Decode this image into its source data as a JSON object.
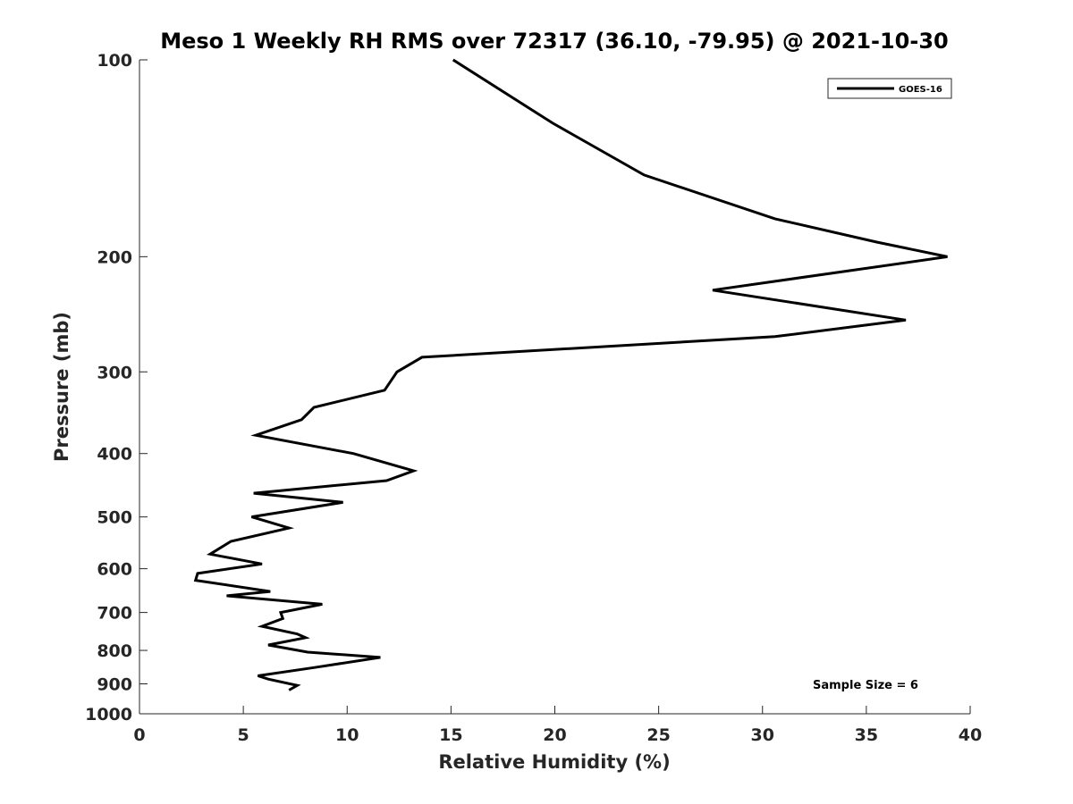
{
  "chart_data": {
    "type": "line",
    "title": "Meso 1 Weekly RH RMS over 72317 (36.10, -79.95) @ 2021-10-30",
    "xlabel": "Relative Humidity (%)",
    "ylabel": "Pressure (mb)",
    "xlim": [
      0,
      40
    ],
    "ylim": [
      100,
      1000
    ],
    "y_scale": "log",
    "y_reversed": true,
    "x_ticks": [
      "0",
      "5",
      "10",
      "15",
      "20",
      "25",
      "30",
      "35",
      "40"
    ],
    "y_ticks": [
      "100",
      "200",
      "300",
      "400",
      "500",
      "600",
      "700",
      "800",
      "900",
      "1000"
    ],
    "grid": false,
    "legend_position": "top-right",
    "annotation": "Sample Size = 6",
    "series": [
      {
        "name": "GOES-16",
        "color": "#000000",
        "points": [
          [
            15.1,
            100
          ],
          [
            19.9,
            125
          ],
          [
            24.3,
            150
          ],
          [
            30.6,
            175
          ],
          [
            35.5,
            190
          ],
          [
            38.9,
            200
          ],
          [
            27.6,
            225
          ],
          [
            36.9,
            250
          ],
          [
            30.6,
            265
          ],
          [
            13.6,
            285
          ],
          [
            12.4,
            300
          ],
          [
            11.8,
            320
          ],
          [
            8.4,
            340
          ],
          [
            7.8,
            355
          ],
          [
            5.6,
            375
          ],
          [
            10.3,
            400
          ],
          [
            13.2,
            425
          ],
          [
            11.9,
            440
          ],
          [
            5.5,
            460
          ],
          [
            9.8,
            475
          ],
          [
            5.4,
            500
          ],
          [
            7.2,
            520
          ],
          [
            4.4,
            545
          ],
          [
            3.4,
            570
          ],
          [
            5.9,
            590
          ],
          [
            2.8,
            610
          ],
          [
            2.7,
            625
          ],
          [
            6.3,
            650
          ],
          [
            4.2,
            660
          ],
          [
            8.8,
            680
          ],
          [
            6.8,
            700
          ],
          [
            6.9,
            715
          ],
          [
            5.9,
            735
          ],
          [
            7.6,
            755
          ],
          [
            8.0,
            765
          ],
          [
            6.2,
            785
          ],
          [
            8.1,
            805
          ],
          [
            11.6,
            820
          ],
          [
            8.4,
            850
          ],
          [
            5.7,
            875
          ],
          [
            6.2,
            885
          ],
          [
            7.6,
            905
          ],
          [
            7.2,
            920
          ]
        ]
      }
    ]
  }
}
